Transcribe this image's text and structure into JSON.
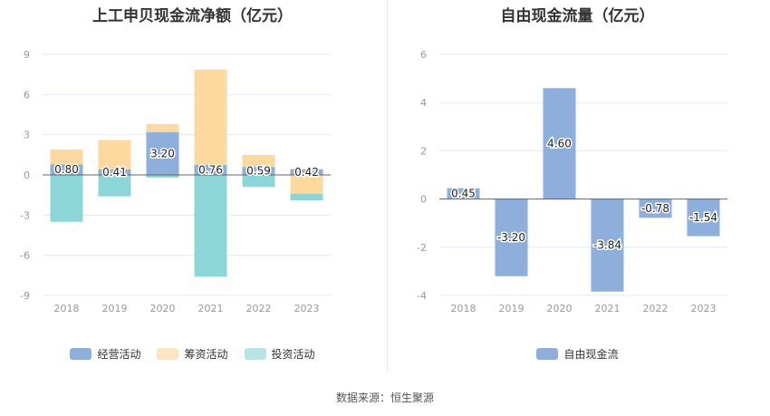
{
  "left_chart": {
    "title": "上工申贝现金流净额（亿元）",
    "legend": [
      {
        "label": "经营活动",
        "color": "#8eaedb"
      },
      {
        "label": "筹资活动",
        "color": "#fdd9a0"
      },
      {
        "label": "投资活动",
        "color": "#b6e4e4"
      }
    ]
  },
  "right_chart": {
    "title": "自由现金流量（亿元）",
    "legend": [
      {
        "label": "自由现金流",
        "color": "#8eaedb"
      }
    ]
  },
  "source": "数据来源：恒生聚源",
  "chart_data": [
    {
      "type": "bar",
      "stacked": true,
      "title": "上工申贝现金流净额（亿元）",
      "categories": [
        "2018",
        "2019",
        "2020",
        "2021",
        "2022",
        "2023"
      ],
      "series": [
        {
          "name": "经营活动",
          "color": "#8eaedb",
          "values": [
            0.8,
            0.41,
            3.2,
            0.76,
            0.59,
            0.42
          ]
        },
        {
          "name": "筹资活动",
          "color": "#fdd9a0",
          "values": [
            1.1,
            2.2,
            0.6,
            7.1,
            0.9,
            -1.4
          ]
        },
        {
          "name": "投资活动",
          "color": "#8cd6d8",
          "values": [
            -3.5,
            -1.6,
            -0.2,
            -7.6,
            -0.9,
            -0.5
          ]
        }
      ],
      "data_labels": [
        "0.80",
        "0.41",
        "3.20",
        "0.76",
        "0.59",
        "0.42"
      ],
      "ylim": [
        -9,
        9
      ],
      "yticks": [
        9,
        6,
        3,
        0,
        -3,
        -6,
        -9
      ],
      "grid": true,
      "legend_position": "bottom"
    },
    {
      "type": "bar",
      "title": "自由现金流量（亿元）",
      "categories": [
        "2018",
        "2019",
        "2020",
        "2021",
        "2022",
        "2023"
      ],
      "series": [
        {
          "name": "自由现金流",
          "color": "#8eaedb",
          "values": [
            0.45,
            -3.2,
            4.6,
            -3.84,
            -0.78,
            -1.54
          ]
        }
      ],
      "data_labels": [
        "0.45",
        "-3.20",
        "4.60",
        "-3.84",
        "-0.78",
        "-1.54"
      ],
      "ylim": [
        -4,
        6
      ],
      "yticks": [
        6,
        4,
        2,
        0,
        -2,
        -4
      ],
      "grid": true,
      "legend_position": "bottom"
    }
  ]
}
